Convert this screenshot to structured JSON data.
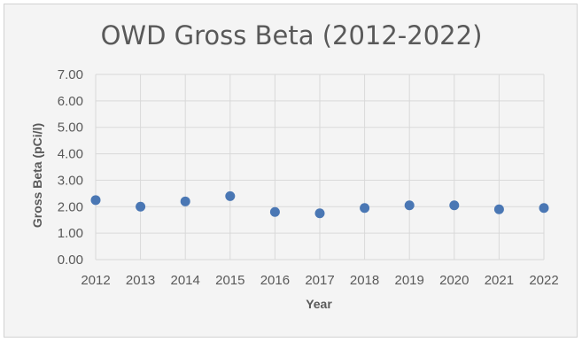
{
  "chart_data": {
    "type": "scatter",
    "title": "OWD Gross Beta (2012-2022)",
    "xlabel": "Year",
    "ylabel": "Gross Beta (pCi/l)",
    "x": [
      2012,
      2013,
      2014,
      2015,
      2016,
      2017,
      2018,
      2019,
      2020,
      2021,
      2022
    ],
    "y": [
      2.25,
      2.0,
      2.2,
      2.4,
      1.8,
      1.75,
      1.95,
      2.05,
      2.05,
      1.9,
      1.95
    ],
    "x_ticks": [
      "2012",
      "2013",
      "2014",
      "2015",
      "2016",
      "2017",
      "2018",
      "2019",
      "2020",
      "2021",
      "2022"
    ],
    "y_ticks": [
      "0.00",
      "1.00",
      "2.00",
      "3.00",
      "4.00",
      "5.00",
      "6.00",
      "7.00"
    ],
    "xlim": [
      2012,
      2022
    ],
    "ylim": [
      0,
      7
    ],
    "grid": true,
    "legend": "none",
    "colors": {
      "marker": "#4a77b4",
      "grid": "#d9d9d9",
      "text": "#595959",
      "background": "#f4f4f4",
      "border": "#d2d2d2"
    }
  }
}
